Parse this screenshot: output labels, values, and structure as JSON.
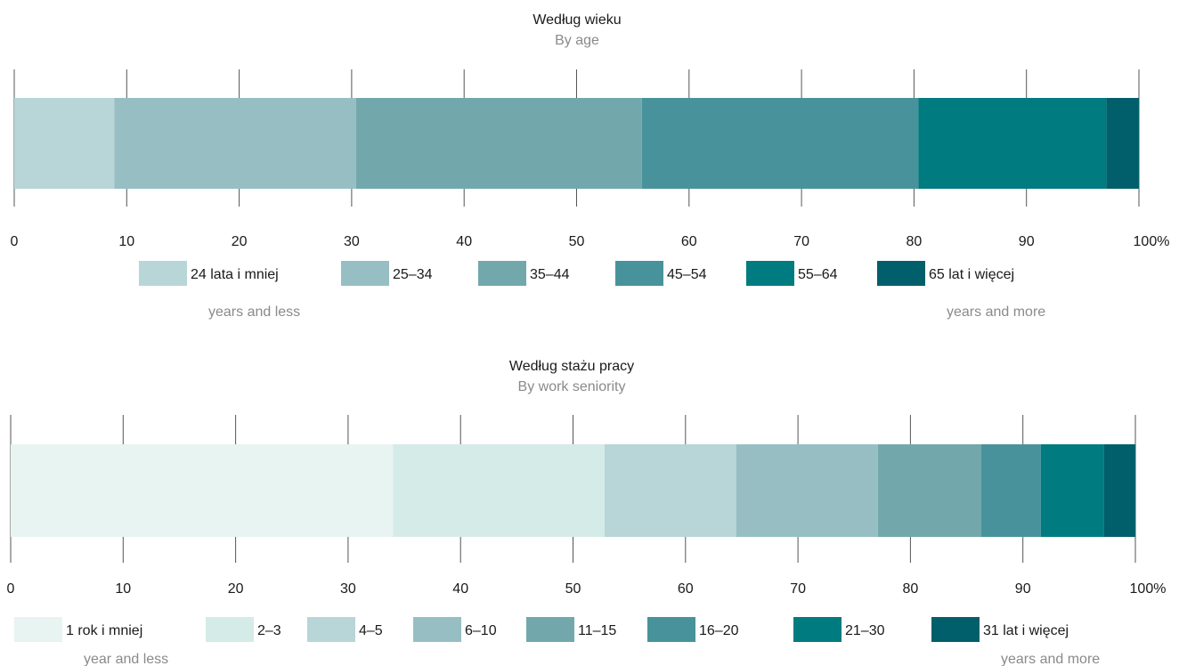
{
  "chart_data": [
    {
      "type": "bar",
      "orientation": "horizontal-stacked",
      "title": "Według wieku",
      "subtitle": "By age",
      "xlim": [
        0,
        100
      ],
      "tick_labels": [
        "0",
        "10",
        "20",
        "30",
        "40",
        "50",
        "60",
        "70",
        "80",
        "90",
        "100%"
      ],
      "series": [
        {
          "name": "24 lata i mniej",
          "name_en": "years and less",
          "value": 8.9,
          "color": "#b8d5d8"
        },
        {
          "name": "25–34",
          "name_en": "",
          "value": 21.5,
          "color": "#97bfc3"
        },
        {
          "name": "35–44",
          "name_en": "",
          "value": 25.4,
          "color": "#72a8ac"
        },
        {
          "name": "45–54",
          "name_en": "",
          "value": 24.6,
          "color": "#48939b"
        },
        {
          "name": "55–64",
          "name_en": "",
          "value": 16.7,
          "color": "#007b80"
        },
        {
          "name": "65 lat i więcej",
          "name_en": "years and more",
          "value": 2.9,
          "color": "#005f6a"
        }
      ]
    },
    {
      "type": "bar",
      "orientation": "horizontal-stacked",
      "title": "Według stażu pracy",
      "subtitle": "By work seniority",
      "xlim": [
        0,
        100
      ],
      "tick_labels": [
        "0",
        "10",
        "20",
        "30",
        "40",
        "50",
        "60",
        "70",
        "80",
        "90",
        "100%"
      ],
      "series": [
        {
          "name": "1 rok i mniej",
          "name_en": "year and less",
          "value": 34.0,
          "color": "#e8f4f1"
        },
        {
          "name": "2–3",
          "name_en": "",
          "value": 18.8,
          "color": "#d5ebe7"
        },
        {
          "name": "4–5",
          "name_en": "",
          "value": 11.7,
          "color": "#b8d5d8"
        },
        {
          "name": "6–10",
          "name_en": "",
          "value": 12.6,
          "color": "#97bfc3"
        },
        {
          "name": "11–15",
          "name_en": "",
          "value": 9.2,
          "color": "#72a8ac"
        },
        {
          "name": "16–20",
          "name_en": "",
          "value": 5.3,
          "color": "#48939b"
        },
        {
          "name": "21–30",
          "name_en": "",
          "value": 5.6,
          "color": "#007b80"
        },
        {
          "name": "31 lat i więcej",
          "name_en": "years and more",
          "value": 2.8,
          "color": "#005f6a"
        }
      ]
    }
  ]
}
